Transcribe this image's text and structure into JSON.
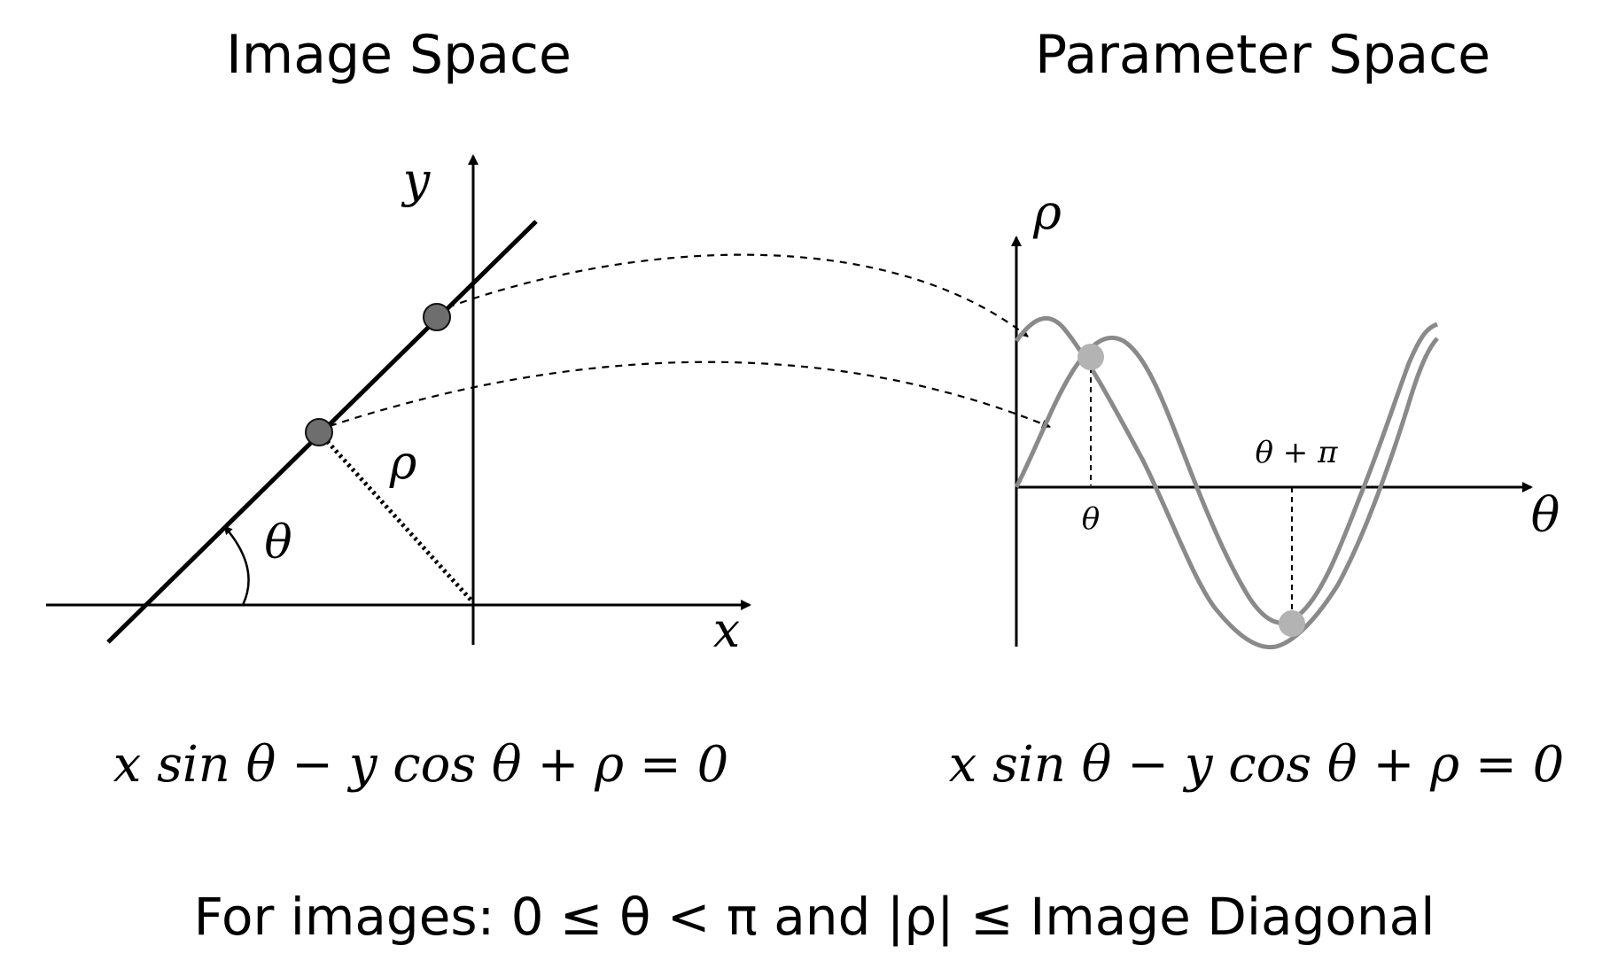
{
  "titles": {
    "image_space": "Image Space",
    "parameter_space": "Parameter Space"
  },
  "image_space": {
    "y_axis_label": "y",
    "x_axis_label": "x",
    "rho_label": "ρ",
    "theta_label": "θ",
    "equation": "x sin θ − y cos θ + ρ = 0"
  },
  "parameter_space": {
    "rho_axis_label": "ρ",
    "theta_axis_label": "θ",
    "theta_tick": "θ",
    "theta_pi_tick": "θ + π",
    "equation": "x sin θ − y cos θ + ρ = 0"
  },
  "footer": {
    "text": "For images: 0 ≤ θ < π and |ρ| ≤ Image Diagonal"
  },
  "colors": {
    "ink": "#000000",
    "point_dark": "#6e6e6e",
    "curve_gray": "#8a8a8a",
    "point_light": "#b3b3b3"
  }
}
